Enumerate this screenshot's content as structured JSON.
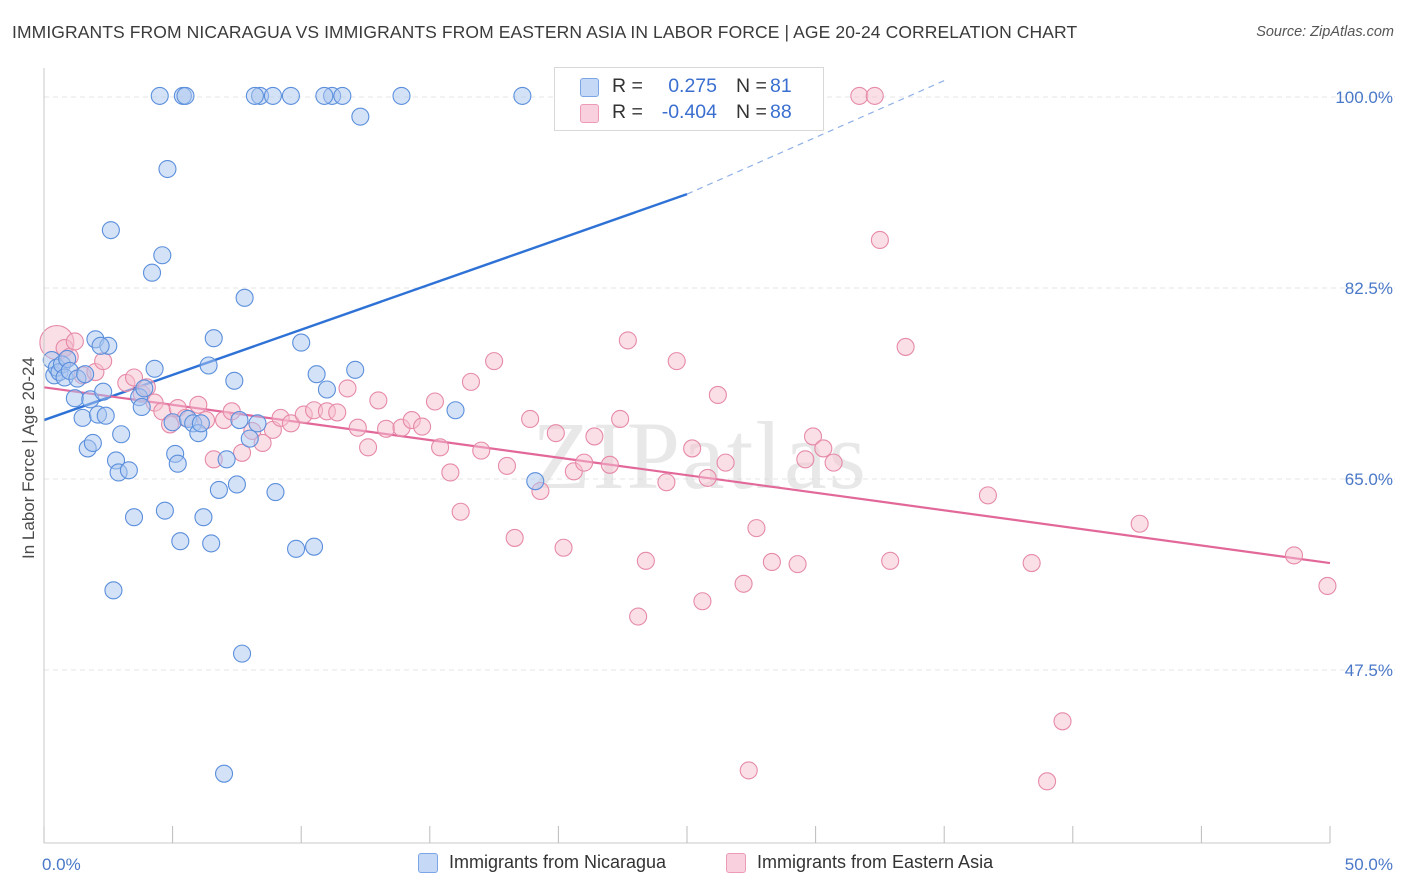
{
  "title": "IMMIGRANTS FROM NICARAGUA VS IMMIGRANTS FROM EASTERN ASIA IN LABOR FORCE | AGE 20-24 CORRELATION CHART",
  "source": "Source: ZipAtlas.com",
  "watermark": "ZIPatlas",
  "colors": {
    "blue_fill": "#aac6f0",
    "blue_stroke": "#5b8fdc",
    "blue_line": "#2f72d6",
    "pink_fill": "#f6bfd0",
    "pink_stroke": "#e68aa8",
    "pink_line": "#e2689a",
    "tick_text": "#4a78c8",
    "grid": "#e4e4e4"
  },
  "legend": {
    "rows": [
      {
        "r_label": "R =",
        "r_value": "0.275",
        "n_label": "N =",
        "n_value": "81"
      },
      {
        "r_label": "R =",
        "r_value": "-0.404",
        "n_label": "N =",
        "n_value": "88"
      }
    ]
  },
  "bottom_legend": {
    "series_a": "Immigrants from Nicaragua",
    "series_b": "Immigrants from Eastern Asia"
  },
  "chart_data": {
    "type": "scatter",
    "xlabel": "",
    "ylabel": "In Labor Force | Age 20-24",
    "x_ticks": [
      "0.0%",
      "50.0%"
    ],
    "y_ticks": [
      "100.0%",
      "82.5%",
      "65.0%",
      "47.5%"
    ],
    "xlim": [
      0,
      50
    ],
    "ylim": [
      33,
      102
    ],
    "y_tick_values": [
      100.0,
      82.5,
      65.0,
      47.5
    ],
    "x_minor_ticks": [
      0,
      5,
      10,
      15,
      20,
      25,
      30,
      35,
      40,
      45,
      50
    ],
    "grid": true,
    "series": [
      {
        "name": "Immigrants from Nicaragua",
        "color": "blue",
        "trend": {
          "x": [
            0,
            25
          ],
          "y": [
            70.4,
            91.1
          ],
          "dashed_to": [
            35,
            101.5
          ]
        },
        "points": [
          [
            0.3,
            75.9
          ],
          [
            0.4,
            74.5
          ],
          [
            0.5,
            75.2
          ],
          [
            0.6,
            74.8
          ],
          [
            0.7,
            75.5
          ],
          [
            0.8,
            74.3
          ],
          [
            0.9,
            76.0
          ],
          [
            1.0,
            74.9
          ],
          [
            1.2,
            72.4
          ],
          [
            1.3,
            74.2
          ],
          [
            1.5,
            70.6
          ],
          [
            1.6,
            74.6
          ],
          [
            1.7,
            67.8
          ],
          [
            1.8,
            72.3
          ],
          [
            1.9,
            68.3
          ],
          [
            2.0,
            77.8
          ],
          [
            2.1,
            70.9
          ],
          [
            2.3,
            73.0
          ],
          [
            2.4,
            70.8
          ],
          [
            2.5,
            77.2
          ],
          [
            2.6,
            87.8
          ],
          [
            2.7,
            54.8
          ],
          [
            2.8,
            66.7
          ],
          [
            2.9,
            65.6
          ],
          [
            3.0,
            69.1
          ],
          [
            3.3,
            65.8
          ],
          [
            3.5,
            61.5
          ],
          [
            3.7,
            72.5
          ],
          [
            3.8,
            71.6
          ],
          [
            3.9,
            73.3
          ],
          [
            4.2,
            83.9
          ],
          [
            4.3,
            75.1
          ],
          [
            4.6,
            85.5
          ],
          [
            4.7,
            62.1
          ],
          [
            4.8,
            93.4
          ],
          [
            5.0,
            70.2
          ],
          [
            5.1,
            67.3
          ],
          [
            5.2,
            66.4
          ],
          [
            5.3,
            59.3
          ],
          [
            5.6,
            70.5
          ],
          [
            5.8,
            70.1
          ],
          [
            6.0,
            69.2
          ],
          [
            6.1,
            70.1
          ],
          [
            6.2,
            61.5
          ],
          [
            6.4,
            75.4
          ],
          [
            6.5,
            59.1
          ],
          [
            6.6,
            77.9
          ],
          [
            6.8,
            64.0
          ],
          [
            7.0,
            38.0
          ],
          [
            7.1,
            66.8
          ],
          [
            7.4,
            74.0
          ],
          [
            7.5,
            64.5
          ],
          [
            7.6,
            70.4
          ],
          [
            7.7,
            49.0
          ],
          [
            7.8,
            81.6
          ],
          [
            8.0,
            68.7
          ],
          [
            8.3,
            70.1
          ],
          [
            9.0,
            63.8
          ],
          [
            8.4,
            100.1
          ],
          [
            8.9,
            100.1
          ],
          [
            9.6,
            100.1
          ],
          [
            8.2,
            100.1
          ],
          [
            4.5,
            100.1
          ],
          [
            5.4,
            100.1
          ],
          [
            5.5,
            100.1
          ],
          [
            9.8,
            58.6
          ],
          [
            10.0,
            77.5
          ],
          [
            10.5,
            58.8
          ],
          [
            11.2,
            100.1
          ],
          [
            10.6,
            74.6
          ],
          [
            11.0,
            73.2
          ],
          [
            11.6,
            100.1
          ],
          [
            12.3,
            98.2
          ],
          [
            13.9,
            100.1
          ],
          [
            10.9,
            100.1
          ],
          [
            18.6,
            100.1
          ],
          [
            25.8,
            100.1
          ],
          [
            12.1,
            75.0
          ],
          [
            16.0,
            71.3
          ],
          [
            19.1,
            64.8
          ],
          [
            2.2,
            77.2
          ]
        ]
      },
      {
        "name": "Immigrants from Eastern Asia",
        "color": "pink",
        "trend": {
          "x": [
            0,
            50
          ],
          "y": [
            73.4,
            57.3
          ]
        },
        "points": [
          [
            0.5,
            77.5
          ],
          [
            0.8,
            77.0
          ],
          [
            1.0,
            76.2
          ],
          [
            1.2,
            77.6
          ],
          [
            1.5,
            74.5
          ],
          [
            2.0,
            74.8
          ],
          [
            2.3,
            75.8
          ],
          [
            3.2,
            73.8
          ],
          [
            3.5,
            74.3
          ],
          [
            3.8,
            72.8
          ],
          [
            4.0,
            73.4
          ],
          [
            4.3,
            72.0
          ],
          [
            4.6,
            71.2
          ],
          [
            4.9,
            70.0
          ],
          [
            5.2,
            71.5
          ],
          [
            5.5,
            70.6
          ],
          [
            6.0,
            71.8
          ],
          [
            6.3,
            70.4
          ],
          [
            6.6,
            66.8
          ],
          [
            7.0,
            70.4
          ],
          [
            7.3,
            71.2
          ],
          [
            7.7,
            67.4
          ],
          [
            8.1,
            69.4
          ],
          [
            8.5,
            68.3
          ],
          [
            8.9,
            69.5
          ],
          [
            9.2,
            70.6
          ],
          [
            9.6,
            70.1
          ],
          [
            10.1,
            70.9
          ],
          [
            10.5,
            71.3
          ],
          [
            11.0,
            71.2
          ],
          [
            11.4,
            71.1
          ],
          [
            11.8,
            73.3
          ],
          [
            12.2,
            69.7
          ],
          [
            12.6,
            67.9
          ],
          [
            13.0,
            72.2
          ],
          [
            13.3,
            69.6
          ],
          [
            13.9,
            69.7
          ],
          [
            14.3,
            70.4
          ],
          [
            14.7,
            69.8
          ],
          [
            15.2,
            72.1
          ],
          [
            15.4,
            67.9
          ],
          [
            15.8,
            65.6
          ],
          [
            16.2,
            62.0
          ],
          [
            16.6,
            73.9
          ],
          [
            17.0,
            67.6
          ],
          [
            17.5,
            75.8
          ],
          [
            18.0,
            66.2
          ],
          [
            18.3,
            59.6
          ],
          [
            18.9,
            70.5
          ],
          [
            19.3,
            63.9
          ],
          [
            19.9,
            69.2
          ],
          [
            20.2,
            58.7
          ],
          [
            20.6,
            65.7
          ],
          [
            21.0,
            66.5
          ],
          [
            21.4,
            68.9
          ],
          [
            22.0,
            66.3
          ],
          [
            22.4,
            70.5
          ],
          [
            22.7,
            77.7
          ],
          [
            23.1,
            52.4
          ],
          [
            23.4,
            57.5
          ],
          [
            24.2,
            64.7
          ],
          [
            24.6,
            75.8
          ],
          [
            25.2,
            67.8
          ],
          [
            25.6,
            53.8
          ],
          [
            25.8,
            65.1
          ],
          [
            26.2,
            72.7
          ],
          [
            26.5,
            66.5
          ],
          [
            27.7,
            60.5
          ],
          [
            28.3,
            57.4
          ],
          [
            27.2,
            55.4
          ],
          [
            29.3,
            57.2
          ],
          [
            29.6,
            66.8
          ],
          [
            29.9,
            68.9
          ],
          [
            30.3,
            67.8
          ],
          [
            30.7,
            66.5
          ],
          [
            31.7,
            100.1
          ],
          [
            32.3,
            100.1
          ],
          [
            32.5,
            86.9
          ],
          [
            32.9,
            57.5
          ],
          [
            33.5,
            77.1
          ],
          [
            36.7,
            63.5
          ],
          [
            38.4,
            57.3
          ],
          [
            39.0,
            37.3
          ],
          [
            39.6,
            42.8
          ],
          [
            42.6,
            60.9
          ],
          [
            48.6,
            58.0
          ],
          [
            49.9,
            55.2
          ],
          [
            27.4,
            38.3
          ]
        ]
      }
    ]
  }
}
